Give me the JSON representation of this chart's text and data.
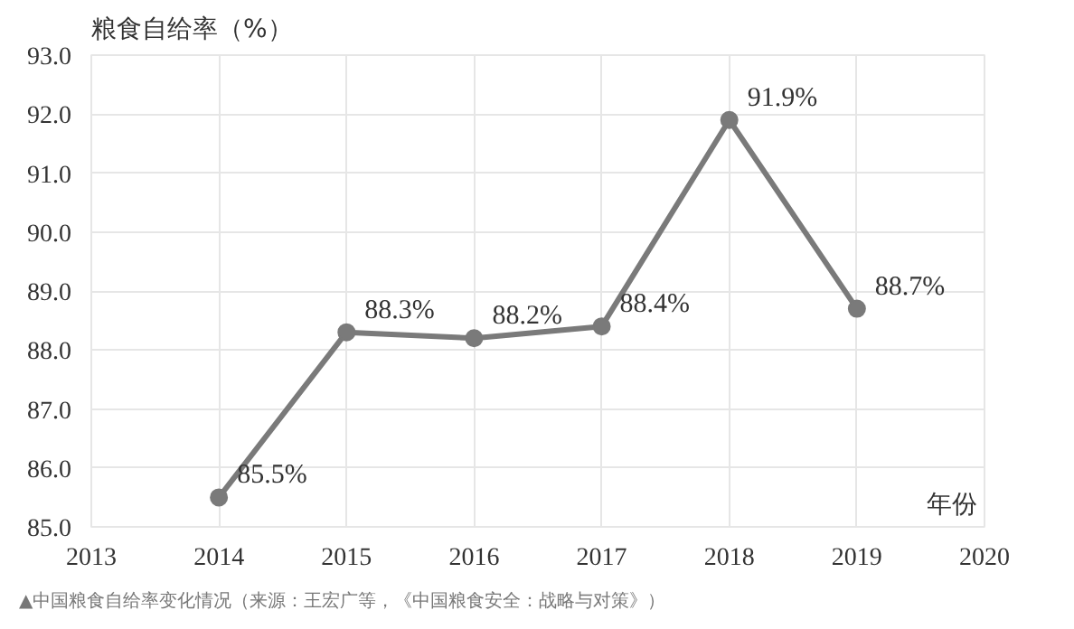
{
  "chart_data": {
    "type": "line",
    "ylabel": "粮食自给率（%）",
    "xlabel": "年份",
    "x": [
      2014,
      2015,
      2016,
      2017,
      2018,
      2019
    ],
    "series": [
      {
        "color": "#7a7a7a",
        "values": [
          85.5,
          88.3,
          88.2,
          88.4,
          91.9,
          88.7
        ],
        "value_labels": [
          "85.5%",
          "88.3%",
          "88.2%",
          "88.4%",
          "91.9%",
          "88.7%"
        ]
      }
    ],
    "xlim": [
      2013,
      2020
    ],
    "xticks": [
      2013,
      2014,
      2015,
      2016,
      2017,
      2018,
      2019,
      2020
    ],
    "ylim": [
      85.0,
      93.0
    ],
    "yticks": [
      {
        "value": 85,
        "label": "85.0"
      },
      {
        "value": 86,
        "label": "86.0"
      },
      {
        "value": 87,
        "label": "87.0"
      },
      {
        "value": 88,
        "label": "88.0"
      },
      {
        "value": 89,
        "label": "89.0"
      },
      {
        "value": 90,
        "label": "90.0"
      },
      {
        "value": 91,
        "label": "91.0"
      },
      {
        "value": 92,
        "label": "92.0"
      },
      {
        "value": 93,
        "label": "93.0"
      }
    ],
    "grid": true,
    "marker": "circle",
    "line_style": "solid",
    "annotations": [
      "▲中国粮食自给率变化情况（来源：王宏广等，《中国粮食安全：战略与对策》）"
    ]
  }
}
